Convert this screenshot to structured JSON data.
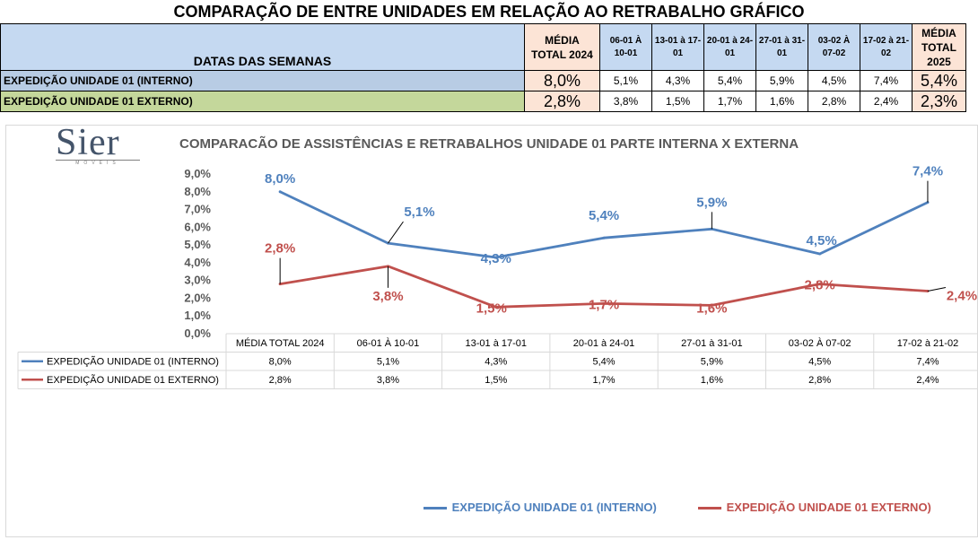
{
  "sheet": {
    "title": "COMPARAÇÃO DE ENTRE UNIDADES EM RELAÇÃO AO RETRABALHO GRÁFICO",
    "dates_header": "DATAS DAS SEMANAS",
    "avg2024_header_l1": "MÉDIA",
    "avg2024_header_l2": "TOTAL 2024",
    "weeks": [
      {
        "l1": "06-01 À",
        "l2": "10-01"
      },
      {
        "l1": "13-01 à 17-",
        "l2": "01"
      },
      {
        "l1": "20-01 à 24-",
        "l2": "01"
      },
      {
        "l1": "27-01 à 31-",
        "l2": "01"
      },
      {
        "l1": "03-02 À",
        "l2": "07-02"
      },
      {
        "l1": "17-02 à 21-",
        "l2": "02"
      }
    ],
    "avg2025_header_l1": "MÉDIA",
    "avg2025_header_l2": "TOTAL",
    "avg2025_header_l3": "2025",
    "rows": [
      {
        "label": "EXPEDIÇÃO UNIDADE 01 (INTERNO)",
        "avg2024": "8,0%",
        "weeks": [
          "5,1%",
          "4,3%",
          "5,4%",
          "5,9%",
          "4,5%",
          "7,4%"
        ],
        "avg2025": "5,4%"
      },
      {
        "label": "EXPEDIÇÃO UNIDADE 01 EXTERNO)",
        "avg2024": "2,8%",
        "weeks": [
          "3,8%",
          "1,5%",
          "1,7%",
          "1,6%",
          "2,8%",
          "2,4%"
        ],
        "avg2025": "2,3%"
      }
    ]
  },
  "logo": {
    "name": "Sier",
    "sub": "MÓVEIS"
  },
  "chart_data": {
    "type": "line",
    "title": "COMPARACÃO DE ASSISTÊNCIAS E RETRABALHOS UNIDADE 01 PARTE INTERNA X EXTERNA",
    "categories": [
      "MÉDIA TOTAL 2024",
      "06-01 À 10-01",
      "13-01 à 17-01",
      "20-01 à 24-01",
      "27-01 à 31-01",
      "03-02 À 07-02",
      "17-02 à 21-02"
    ],
    "y_ticks": [
      "0,0%",
      "1,0%",
      "2,0%",
      "3,0%",
      "4,0%",
      "5,0%",
      "6,0%",
      "7,0%",
      "8,0%",
      "9,0%"
    ],
    "ylim": [
      0,
      9
    ],
    "grid": false,
    "legend_position": "bottom",
    "data_table": true,
    "series": [
      {
        "name": "EXPEDIÇÃO UNIDADE 01 (INTERNO)",
        "color": "#4f81bd",
        "values": [
          8.0,
          5.1,
          4.3,
          5.4,
          5.9,
          4.5,
          7.4
        ],
        "labels": [
          "8,0%",
          "5,1%",
          "4,3%",
          "5,4%",
          "5,9%",
          "4,5%",
          "7,4%"
        ]
      },
      {
        "name": "EXPEDIÇÃO UNIDADE 01 EXTERNO)",
        "color": "#c0504d",
        "values": [
          2.8,
          3.8,
          1.5,
          1.7,
          1.6,
          2.8,
          2.4
        ],
        "labels": [
          "2,8%",
          "3,8%",
          "1,5%",
          "1,7%",
          "1,6%",
          "2,8%",
          "2,4%"
        ]
      }
    ]
  }
}
